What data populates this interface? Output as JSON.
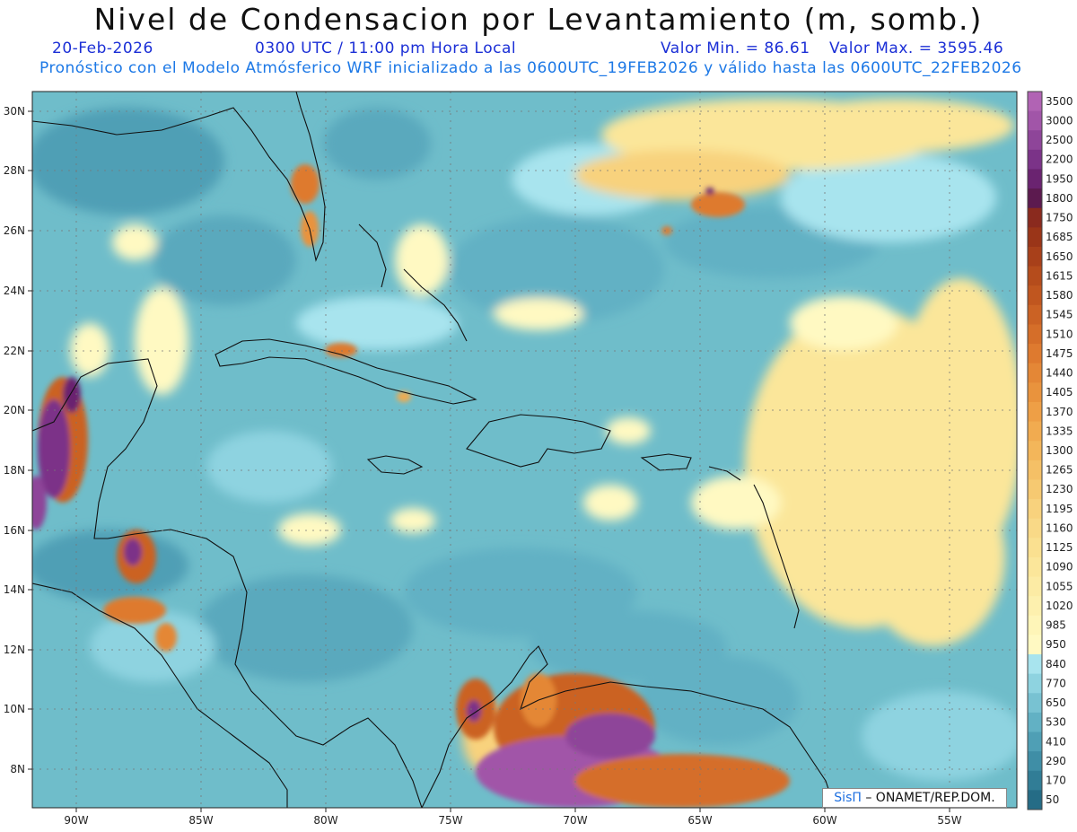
{
  "header": {
    "title": "Nivel de Condensacion por Levantamiento (m, somb.)",
    "date": "20-Feb-2026",
    "time": "0300 UTC / 11:00 pm Hora Local",
    "min_label": "Valor Min. = 86.61",
    "max_label": "Valor Max. = 3595.46",
    "model_info": "Pronóstico con el Modelo Atmósferico WRF inicializado a las 0600UTC_19FEB2026 y válido hasta las  0600UTC_22FEB2026"
  },
  "map": {
    "lat_labels": [
      "30N",
      "28N",
      "26N",
      "24N",
      "22N",
      "20N",
      "18N",
      "16N",
      "14N",
      "12N",
      "10N",
      "8N"
    ],
    "lon_labels": [
      "90W",
      "85W",
      "80W",
      "75W",
      "70W",
      "65W",
      "60W",
      "55W"
    ]
  },
  "legend": {
    "levels": [
      "3500",
      "3000",
      "2500",
      "2200",
      "1950",
      "1800",
      "1750",
      "1685",
      "1650",
      "1615",
      "1580",
      "1545",
      "1510",
      "1475",
      "1440",
      "1405",
      "1370",
      "1335",
      "1300",
      "1265",
      "1230",
      "1195",
      "1160",
      "1125",
      "1090",
      "1055",
      "1020",
      "985",
      "950",
      "840",
      "770",
      "650",
      "530",
      "410",
      "290",
      "170",
      "50"
    ],
    "colors": [
      "#b163b4",
      "#a155a8",
      "#8e4599",
      "#7b3388",
      "#6a2370",
      "#5c1a4f",
      "#8a2a1e",
      "#9a3518",
      "#a8401a",
      "#b54c1c",
      "#c0561f",
      "#cb6224",
      "#d56e29",
      "#de7a2f",
      "#e48736",
      "#e9933d",
      "#ee9f46",
      "#f1ab50",
      "#f3b65a",
      "#f5c066",
      "#f6c971",
      "#f8d27d",
      "#f9d987",
      "#fae090",
      "#fbe69a",
      "#fcebA4",
      "#fdf0ae",
      "#fef5b8",
      "#fff9c2",
      "#a8e4ee",
      "#8ed3e0",
      "#78c2d2",
      "#62b1c4",
      "#4f9fb5",
      "#3f8ea6",
      "#317d96",
      "#256c86"
    ]
  },
  "credit": {
    "brand": "SisΠ",
    "text": "– ONAMET/REP.DOM."
  }
}
